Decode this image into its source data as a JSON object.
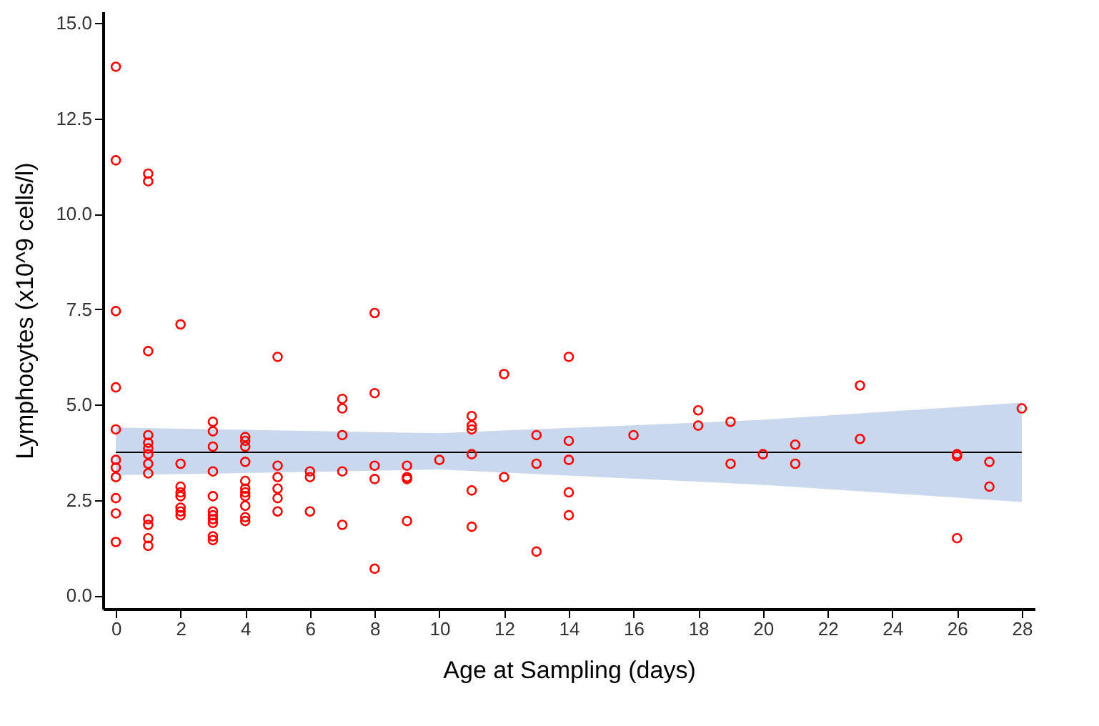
{
  "chart_data": {
    "type": "scatter",
    "xlabel": "Age at Sampling (days)",
    "ylabel": "Lymphocytes (x10^9 cells/l)",
    "xlim": [
      -0.4,
      28.4
    ],
    "ylim": [
      -0.35,
      15.3
    ],
    "xticks": [
      0,
      2,
      4,
      6,
      8,
      10,
      12,
      14,
      16,
      18,
      20,
      22,
      24,
      26,
      28
    ],
    "yticks": [
      {
        "value": 0,
        "label": "0.0"
      },
      2.5,
      {
        "value": 5,
        "label": "5.0"
      },
      7.5,
      {
        "value": 10,
        "label": "10.0"
      },
      12.5,
      {
        "value": 15,
        "label": "15.0"
      }
    ],
    "grid": false,
    "legend": false,
    "marker": "circle",
    "series": [
      {
        "type": "line",
        "color": "#000000",
        "marker": "none",
        "x": [
          0,
          10,
          20,
          28
        ],
        "values": [
          3.75,
          3.75,
          3.75,
          3.75
        ],
        "lower": [
          3.15,
          3.3,
          2.9,
          2.45
        ],
        "upper": [
          4.4,
          4.25,
          4.6,
          5.05
        ]
      },
      {
        "color": "#ff0000",
        "x": [
          0,
          0,
          0,
          0,
          0,
          0,
          0,
          0,
          0,
          0,
          0,
          1,
          1,
          1,
          1,
          1,
          1,
          1,
          1,
          1,
          1,
          1,
          1,
          1,
          2,
          2,
          2,
          2,
          2,
          2,
          2,
          2,
          3,
          3,
          3,
          3,
          3,
          3,
          3,
          3,
          3,
          3,
          3,
          4,
          4,
          4,
          4,
          4,
          4,
          4,
          4,
          4,
          4,
          4,
          5,
          5,
          5,
          5,
          5,
          5,
          6,
          6,
          6,
          7,
          7,
          7,
          7,
          7,
          8,
          8,
          8,
          8,
          8,
          9,
          9,
          9,
          9,
          10,
          11,
          11,
          11,
          11,
          11,
          11,
          12,
          12,
          13,
          13,
          13,
          14,
          14,
          14,
          14,
          14,
          16,
          18,
          18,
          19,
          19,
          20,
          21,
          21,
          23,
          23,
          26,
          26,
          26,
          27,
          27,
          28
        ],
        "values": [
          13.85,
          11.4,
          7.45,
          5.45,
          4.35,
          3.55,
          3.35,
          3.1,
          2.55,
          2.15,
          1.4,
          11.05,
          10.85,
          6.4,
          4.2,
          4.0,
          3.85,
          3.7,
          3.45,
          3.2,
          2.0,
          1.85,
          1.5,
          1.3,
          7.1,
          3.45,
          2.85,
          2.7,
          2.6,
          2.3,
          2.2,
          2.1,
          4.55,
          4.3,
          3.9,
          3.25,
          2.6,
          2.2,
          2.1,
          2.0,
          1.9,
          1.55,
          1.45,
          4.15,
          4.05,
          3.9,
          3.5,
          3.0,
          2.8,
          2.7,
          2.6,
          2.35,
          2.05,
          1.95,
          6.25,
          3.4,
          3.1,
          2.8,
          2.55,
          2.2,
          3.25,
          3.1,
          2.2,
          5.15,
          4.9,
          4.2,
          3.25,
          1.85,
          7.4,
          5.3,
          3.4,
          3.05,
          0.7,
          3.4,
          3.1,
          3.05,
          1.95,
          3.55,
          4.7,
          4.45,
          4.35,
          3.7,
          2.75,
          1.8,
          5.8,
          3.1,
          4.2,
          3.45,
          1.15,
          6.25,
          4.05,
          3.55,
          2.7,
          2.1,
          4.2,
          4.85,
          4.45,
          4.55,
          3.45,
          3.7,
          3.95,
          3.45,
          5.5,
          4.1,
          3.7,
          3.65,
          1.5,
          3.5,
          2.85,
          4.9
        ]
      }
    ]
  }
}
